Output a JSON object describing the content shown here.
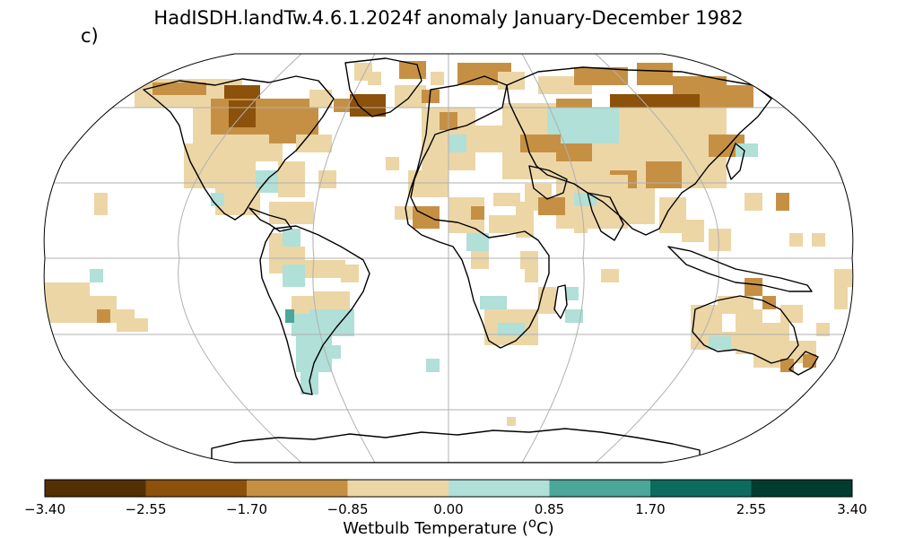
{
  "title": "HadISDH.landTw.4.6.1.2024f anomaly January-December 1982",
  "panel_label": "c)",
  "colorbar": {
    "label_prefix": "Wetbulb Temperature (",
    "label_sup": "o",
    "label_suffix": "C)",
    "ticks": [
      "−3.40",
      "−2.55",
      "−1.70",
      "−0.85",
      "0.00",
      "0.85",
      "1.70",
      "2.55",
      "3.40"
    ],
    "bins": [
      {
        "range": [
          -3.4,
          -2.55
        ],
        "color": "#543005"
      },
      {
        "range": [
          -2.55,
          -1.7
        ],
        "color": "#8c510a"
      },
      {
        "range": [
          -1.7,
          -0.85
        ],
        "color": "#c69044"
      },
      {
        "range": [
          -0.85,
          0.0
        ],
        "color": "#ecd6a6"
      },
      {
        "range": [
          0.0,
          0.85
        ],
        "color": "#b0e0d8"
      },
      {
        "range": [
          0.85,
          1.7
        ],
        "color": "#4aa79a"
      },
      {
        "range": [
          1.7,
          2.55
        ],
        "color": "#0c6b5f"
      },
      {
        "range": [
          2.55,
          3.4
        ],
        "color": "#003c30"
      }
    ]
  },
  "map": {
    "projection": "Robinson",
    "gridlines": true,
    "coastlines": true,
    "land_outline_color": "#000000",
    "grid_color": "#b0b0b0"
  }
}
